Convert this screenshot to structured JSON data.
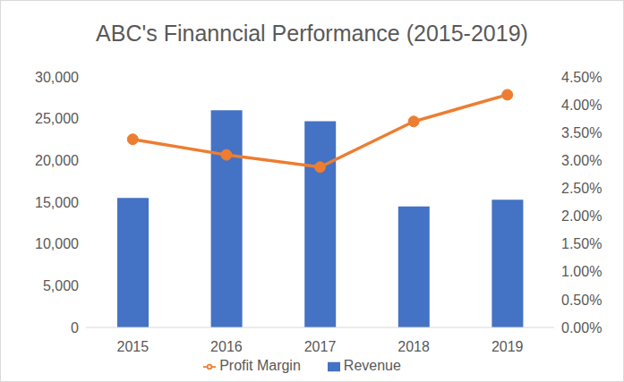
{
  "chart_data": {
    "type": "bar",
    "title": "ABC's Finanncial Performance (2015-2019)",
    "categories": [
      "2015",
      "2016",
      "2017",
      "2018",
      "2019"
    ],
    "series": [
      {
        "name": "Revenue",
        "type": "bar",
        "color": "#4472c4",
        "values": [
          15500,
          26000,
          24700,
          14500,
          15300
        ]
      },
      {
        "name": "Profit Margin",
        "type": "line",
        "axis": "y2",
        "color": "#ed7d31",
        "marker": "circle",
        "line_style": "solid",
        "values": [
          3.38,
          3.1,
          2.88,
          3.7,
          4.18
        ]
      }
    ],
    "ylim": [
      0,
      30000
    ],
    "yticks": [
      0,
      {
        "value": 5000,
        "label": "5,000"
      },
      {
        "value": 10000,
        "label": "10,000"
      },
      {
        "value": 15000,
        "label": "15,000"
      },
      {
        "value": 20000,
        "label": "20,000"
      },
      {
        "value": 25000,
        "label": "25,000"
      },
      {
        "value": 30000,
        "label": "30,000"
      }
    ],
    "y2lim": [
      0,
      4.5
    ],
    "y2ticks": [
      {
        "value": 0,
        "label": "0.00%"
      },
      {
        "value": 0.5,
        "label": "0.50%"
      },
      {
        "value": 1,
        "label": "1.00%"
      },
      {
        "value": 1.5,
        "label": "1.50%"
      },
      {
        "value": 2,
        "label": "2.00%"
      },
      {
        "value": 2.5,
        "label": "2.50%"
      },
      {
        "value": 3,
        "label": "3.00%"
      },
      {
        "value": 3.5,
        "label": "3.50%"
      },
      {
        "value": 4,
        "label": "4.00%"
      },
      {
        "value": 4.5,
        "label": "4.50%"
      }
    ],
    "grid": false,
    "legend": "bottom"
  }
}
